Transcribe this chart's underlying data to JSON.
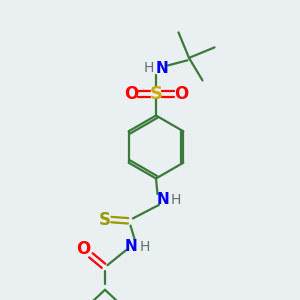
{
  "bg_color": "#eaeff1",
  "bond_color": "#3a7a3a",
  "atom_colors": {
    "N": "#0000ee",
    "O": "#ff0000",
    "S_sulfonyl": "#ccaa00",
    "S_thio": "#999900",
    "H": "#607070",
    "C": "#3a7a3a"
  },
  "figsize": [
    3.0,
    3.0
  ],
  "dpi": 100
}
